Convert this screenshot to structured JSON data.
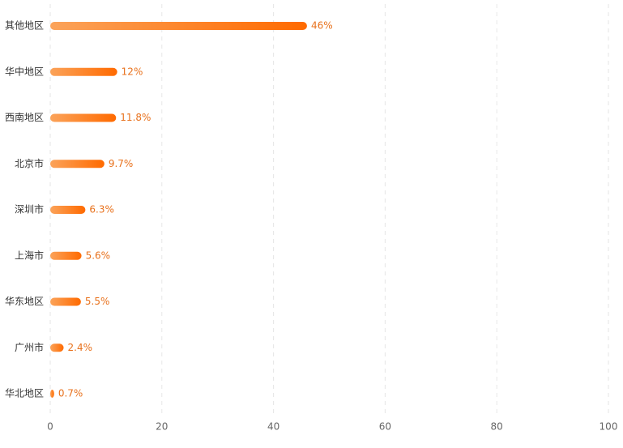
{
  "chart_data": {
    "type": "bar",
    "orientation": "horizontal",
    "categories": [
      "其他地区",
      "华中地区",
      "西南地区",
      "北京市",
      "深圳市",
      "上海市",
      "华东地区",
      "广州市",
      "华北地区"
    ],
    "values": [
      46,
      12,
      11.8,
      9.7,
      6.3,
      5.6,
      5.5,
      2.4,
      0.7
    ],
    "value_labels": [
      "46%",
      "12%",
      "11.8%",
      "9.7%",
      "6.3%",
      "5.6%",
      "5.5%",
      "2.4%",
      "0.7%"
    ],
    "color": [
      "#fba35a",
      "#ff6a00"
    ],
    "xlim": [
      0,
      100
    ],
    "xticks": [
      0,
      20,
      40,
      60,
      80,
      100
    ],
    "grid": true
  }
}
